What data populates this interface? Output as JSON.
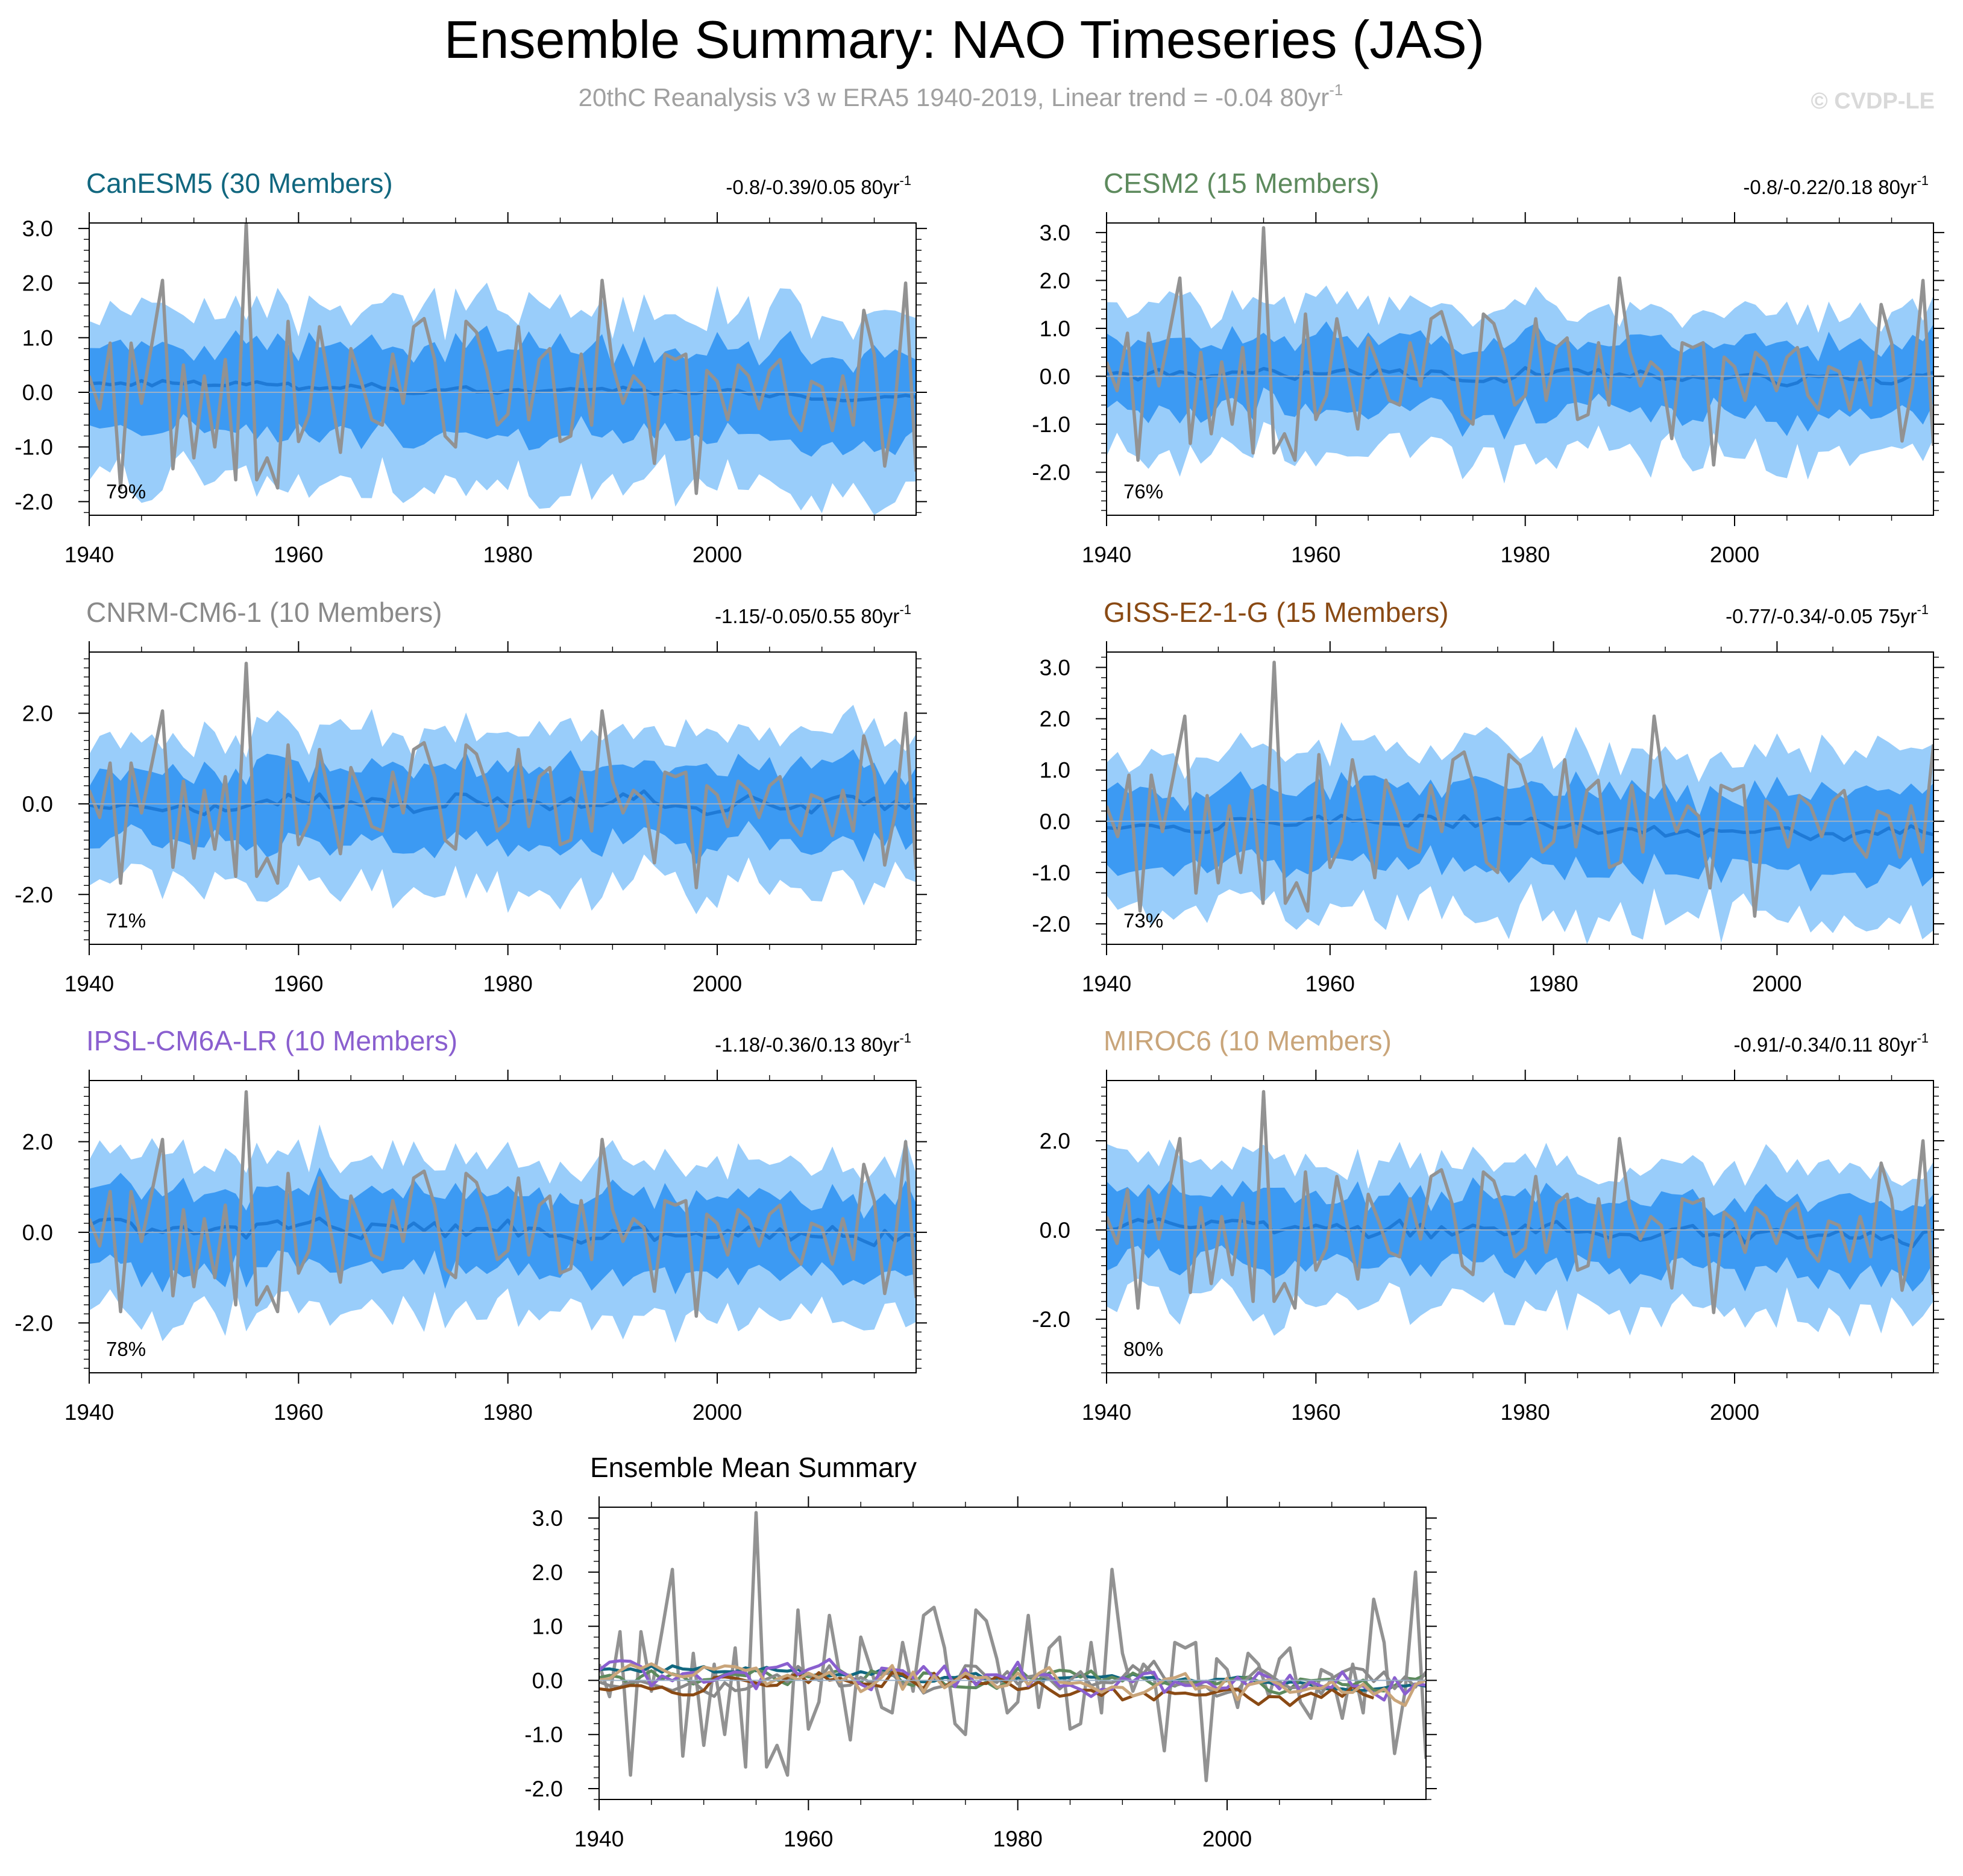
{
  "header": {
    "title": "Ensemble Summary: NAO Timeseries (JAS)",
    "subtitle": "20thC Reanalysis v3 w ERA5 1940-2019, Linear trend = -0.04 80yr",
    "subtitle_exp": "-1",
    "credit": "© CVDP-LE"
  },
  "colors": {
    "band_outer": "#99cdfa",
    "band_inner": "#3c9af3",
    "ens_mean": "#1f7ad6",
    "observed": "#929292",
    "zero_line": "#9ab0c8"
  },
  "chart_data": [
    {
      "type": "area",
      "title": "CanESM5 (30 Members)",
      "title_color": "#11677f",
      "trend": "-0.8/-0.39/0.05 80yr",
      "trend_exp": "-1",
      "percent": "79%",
      "ylim": [
        -2.25,
        3.1
      ],
      "yticks": [
        "3.0",
        "2.0",
        "1.0",
        "0.0",
        "-1.0",
        "-2.0"
      ],
      "ytick_values": [
        3,
        2,
        1,
        0,
        -1,
        -2
      ],
      "xlim": [
        1940,
        2019
      ],
      "xticks": [
        "1940",
        "1960",
        "1980",
        "2000"
      ],
      "xtick_values": [
        1940,
        1960,
        1980,
        2000
      ],
      "start": 1940,
      "end": 2019,
      "amp": 1.05,
      "mean_base": 0.2,
      "mean_trend": -0.3,
      "mean_amp": 0.1,
      "seed": 11
    },
    {
      "type": "area",
      "title": "CESM2 (15 Members)",
      "title_color": "#5d8a5d",
      "trend": "-0.8/-0.22/0.18 80yr",
      "trend_exp": "-1",
      "percent": "76%",
      "ylim": [
        -2.9,
        3.2
      ],
      "yticks": [
        "3.0",
        "2.0",
        "1.0",
        "0.0",
        "-1.0",
        "-2.0"
      ],
      "ytick_values": [
        3,
        2,
        1,
        0,
        -1,
        -2
      ],
      "xlim": [
        1940,
        2019
      ],
      "xticks": [
        "1940",
        "1960",
        "1980",
        "2000"
      ],
      "xtick_values": [
        1940,
        1960,
        1980,
        2000
      ],
      "start": 1940,
      "end": 2019,
      "amp": 1.05,
      "mean_base": 0.1,
      "mean_trend": -0.15,
      "mean_amp": 0.18,
      "seed": 23
    },
    {
      "type": "area",
      "title": "CNRM-CM6-1 (10 Members)",
      "title_color": "#8a8a8a",
      "trend": "-1.15/-0.05/0.55 80yr",
      "trend_exp": "-1",
      "percent": "71%",
      "ylim": [
        -3.1,
        3.35
      ],
      "yticks": [
        "2.0",
        "0.0",
        "-2.0"
      ],
      "ytick_values": [
        2,
        0,
        -2
      ],
      "xlim": [
        1940,
        2019
      ],
      "xticks": [
        "1940",
        "1960",
        "1980",
        "2000"
      ],
      "xtick_values": [
        1940,
        1960,
        1980,
        2000
      ],
      "start": 1940,
      "end": 2019,
      "amp": 1.15,
      "mean_base": 0.0,
      "mean_trend": -0.05,
      "mean_amp": 0.3,
      "seed": 37
    },
    {
      "type": "area",
      "title": "GISS-E2-1-G (15 Members)",
      "title_color": "#8a4a14",
      "trend": "-0.77/-0.34/-0.05 75yr",
      "trend_exp": "-1",
      "percent": "73%",
      "ylim": [
        -2.4,
        3.3
      ],
      "yticks": [
        "3.0",
        "2.0",
        "1.0",
        "0.0",
        "-1.0",
        "-2.0"
      ],
      "ytick_values": [
        3,
        2,
        1,
        0,
        -1,
        -2
      ],
      "xlim": [
        1940,
        2014
      ],
      "xticks": [
        "1940",
        "1960",
        "1980",
        "2000"
      ],
      "xtick_values": [
        1940,
        1960,
        1980,
        2000
      ],
      "start": 1940,
      "end": 2014,
      "amp": 1.05,
      "mean_base": 0.0,
      "mean_trend": -0.25,
      "mean_amp": 0.22,
      "seed": 53
    },
    {
      "type": "area",
      "title": "IPSL-CM6A-LR (10 Members)",
      "title_color": "#8a5fcf",
      "trend": "-1.18/-0.36/0.13 80yr",
      "trend_exp": "-1",
      "percent": "78%",
      "ylim": [
        -3.1,
        3.35
      ],
      "yticks": [
        "2.0",
        "0.0",
        "-2.0"
      ],
      "ytick_values": [
        2,
        0,
        -2
      ],
      "xlim": [
        1940,
        2019
      ],
      "xticks": [
        "1940",
        "1960",
        "1980",
        "2000"
      ],
      "xtick_values": [
        1940,
        1960,
        1980,
        2000
      ],
      "start": 1940,
      "end": 2019,
      "amp": 1.15,
      "mean_base": 0.15,
      "mean_trend": -0.3,
      "mean_amp": 0.3,
      "seed": 71
    },
    {
      "type": "area",
      "title": "MIROC6 (10 Members)",
      "title_color": "#c9a57a",
      "trend": "-0.91/-0.34/0.11 80yr",
      "trend_exp": "-1",
      "percent": "80%",
      "ylim": [
        -3.2,
        3.35
      ],
      "yticks": [
        "2.0",
        "0.0",
        "-2.0"
      ],
      "ytick_values": [
        2,
        0,
        -2
      ],
      "xlim": [
        1940,
        2019
      ],
      "xticks": [
        "1940",
        "1960",
        "1980",
        "2000"
      ],
      "xtick_values": [
        1940,
        1960,
        1980,
        2000
      ],
      "start": 1940,
      "end": 2019,
      "amp": 1.1,
      "mean_base": 0.1,
      "mean_trend": -0.25,
      "mean_amp": 0.3,
      "seed": 89
    },
    {
      "type": "line",
      "title": "Ensemble Mean Summary",
      "title_color": "#000000",
      "ylim": [
        -2.2,
        3.2
      ],
      "yticks": [
        "3.0",
        "2.0",
        "1.0",
        "0.0",
        "-1.0",
        "-2.0"
      ],
      "ytick_values": [
        3,
        2,
        1,
        0,
        -1,
        -2
      ],
      "xlim": [
        1940,
        2019
      ],
      "xticks": [
        "1940",
        "1960",
        "1980",
        "2000"
      ],
      "xtick_values": [
        1940,
        1960,
        1980,
        2000
      ],
      "series_colors": [
        "#11677f",
        "#5d8a5d",
        "#8a8a8a",
        "#8a4a14",
        "#8a5fcf",
        "#c9a57a"
      ]
    }
  ],
  "observed_years": [
    1940,
    2019
  ],
  "observed_nao": [
    0.3,
    -0.3,
    0.9,
    -1.75,
    0.9,
    -0.2,
    0.9,
    2.05,
    -1.4,
    0.5,
    -1.2,
    0.3,
    -1.0,
    0.6,
    -1.6,
    3.1,
    -1.6,
    -1.2,
    -1.75,
    1.3,
    -0.9,
    -0.4,
    1.2,
    0.1,
    -1.1,
    0.8,
    0.2,
    -0.5,
    -0.6,
    0.7,
    -0.2,
    1.2,
    1.35,
    0.6,
    -0.8,
    -1.0,
    1.3,
    1.1,
    0.4,
    -0.6,
    -0.4,
    1.2,
    -0.5,
    0.6,
    0.8,
    -0.9,
    -0.8,
    0.7,
    -0.6,
    2.05,
    0.5,
    -0.2,
    0.3,
    0.1,
    -1.3,
    0.7,
    0.6,
    0.7,
    -1.85,
    0.4,
    0.2,
    -0.5,
    0.5,
    0.3,
    -0.3,
    0.4,
    0.6,
    -0.4,
    -0.7,
    0.2,
    0.1,
    -0.7,
    0.3,
    -0.6,
    1.5,
    0.7,
    -1.35,
    -0.2,
    2.0,
    -1.45
  ]
}
